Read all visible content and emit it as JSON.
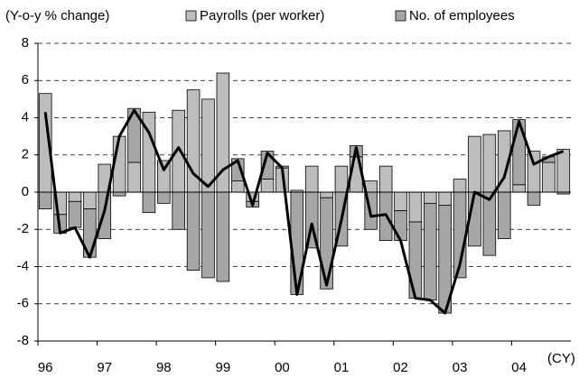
{
  "chart_data": {
    "type": "bar",
    "stacked": true,
    "y_label": "(Y-o-y % change)",
    "x_unit": "(CY)",
    "categories": [
      "96",
      null,
      null,
      null,
      "97",
      null,
      null,
      null,
      "98",
      null,
      null,
      null,
      "99",
      null,
      null,
      null,
      "00",
      null,
      null,
      null,
      "01",
      null,
      null,
      null,
      "02",
      null,
      null,
      null,
      "03",
      null,
      null,
      null,
      "04",
      null,
      null,
      null
    ],
    "series": [
      {
        "name": "Payrolls (per worker)",
        "color": "#bdbdbd",
        "values": [
          5.3,
          -1.2,
          -0.5,
          -0.9,
          1.5,
          3.0,
          1.6,
          4.3,
          1.7,
          4.4,
          5.5,
          5.0,
          6.4,
          0.6,
          -0.5,
          0.7,
          1.3,
          0.1,
          1.4,
          -0.3,
          1.4,
          1.9,
          0.6,
          1.4,
          -1.0,
          -1.6,
          -0.6,
          -0.7,
          0.7,
          3.0,
          3.1,
          3.3,
          0.4,
          2.2,
          1.6,
          2.3
        ]
      },
      {
        "name": "No. of employees",
        "color": "#a6a6a6",
        "values": [
          -0.9,
          -1.0,
          -1.4,
          -2.6,
          -2.5,
          -0.2,
          2.9,
          -1.1,
          -0.6,
          -2.0,
          -4.2,
          -4.6,
          -4.8,
          1.2,
          -0.3,
          1.5,
          0.1,
          -5.5,
          -3.0,
          -4.9,
          -2.9,
          0.6,
          -2.0,
          -2.6,
          -1.6,
          -4.1,
          -5.2,
          -5.8,
          -4.6,
          -2.9,
          -3.4,
          -2.5,
          3.5,
          -0.7,
          0.3,
          -0.1
        ]
      }
    ],
    "line": {
      "color": "#000000",
      "values": [
        4.3,
        -2.2,
        -1.9,
        -3.5,
        -1.0,
        3.0,
        4.4,
        3.2,
        1.2,
        2.4,
        1.0,
        0.3,
        1.2,
        1.7,
        -0.7,
        2.1,
        1.3,
        -5.5,
        -1.7,
        -5.0,
        -1.5,
        2.4,
        -1.3,
        -1.2,
        -2.6,
        -5.7,
        -5.8,
        -6.5,
        -3.9,
        0.0,
        -0.4,
        0.8,
        3.8,
        1.5,
        1.9,
        2.2
      ]
    },
    "ylim": [
      -8,
      8
    ],
    "yticks": [
      -8,
      -6,
      -4,
      -2,
      0,
      2,
      4,
      6,
      8
    ],
    "grid": true
  }
}
